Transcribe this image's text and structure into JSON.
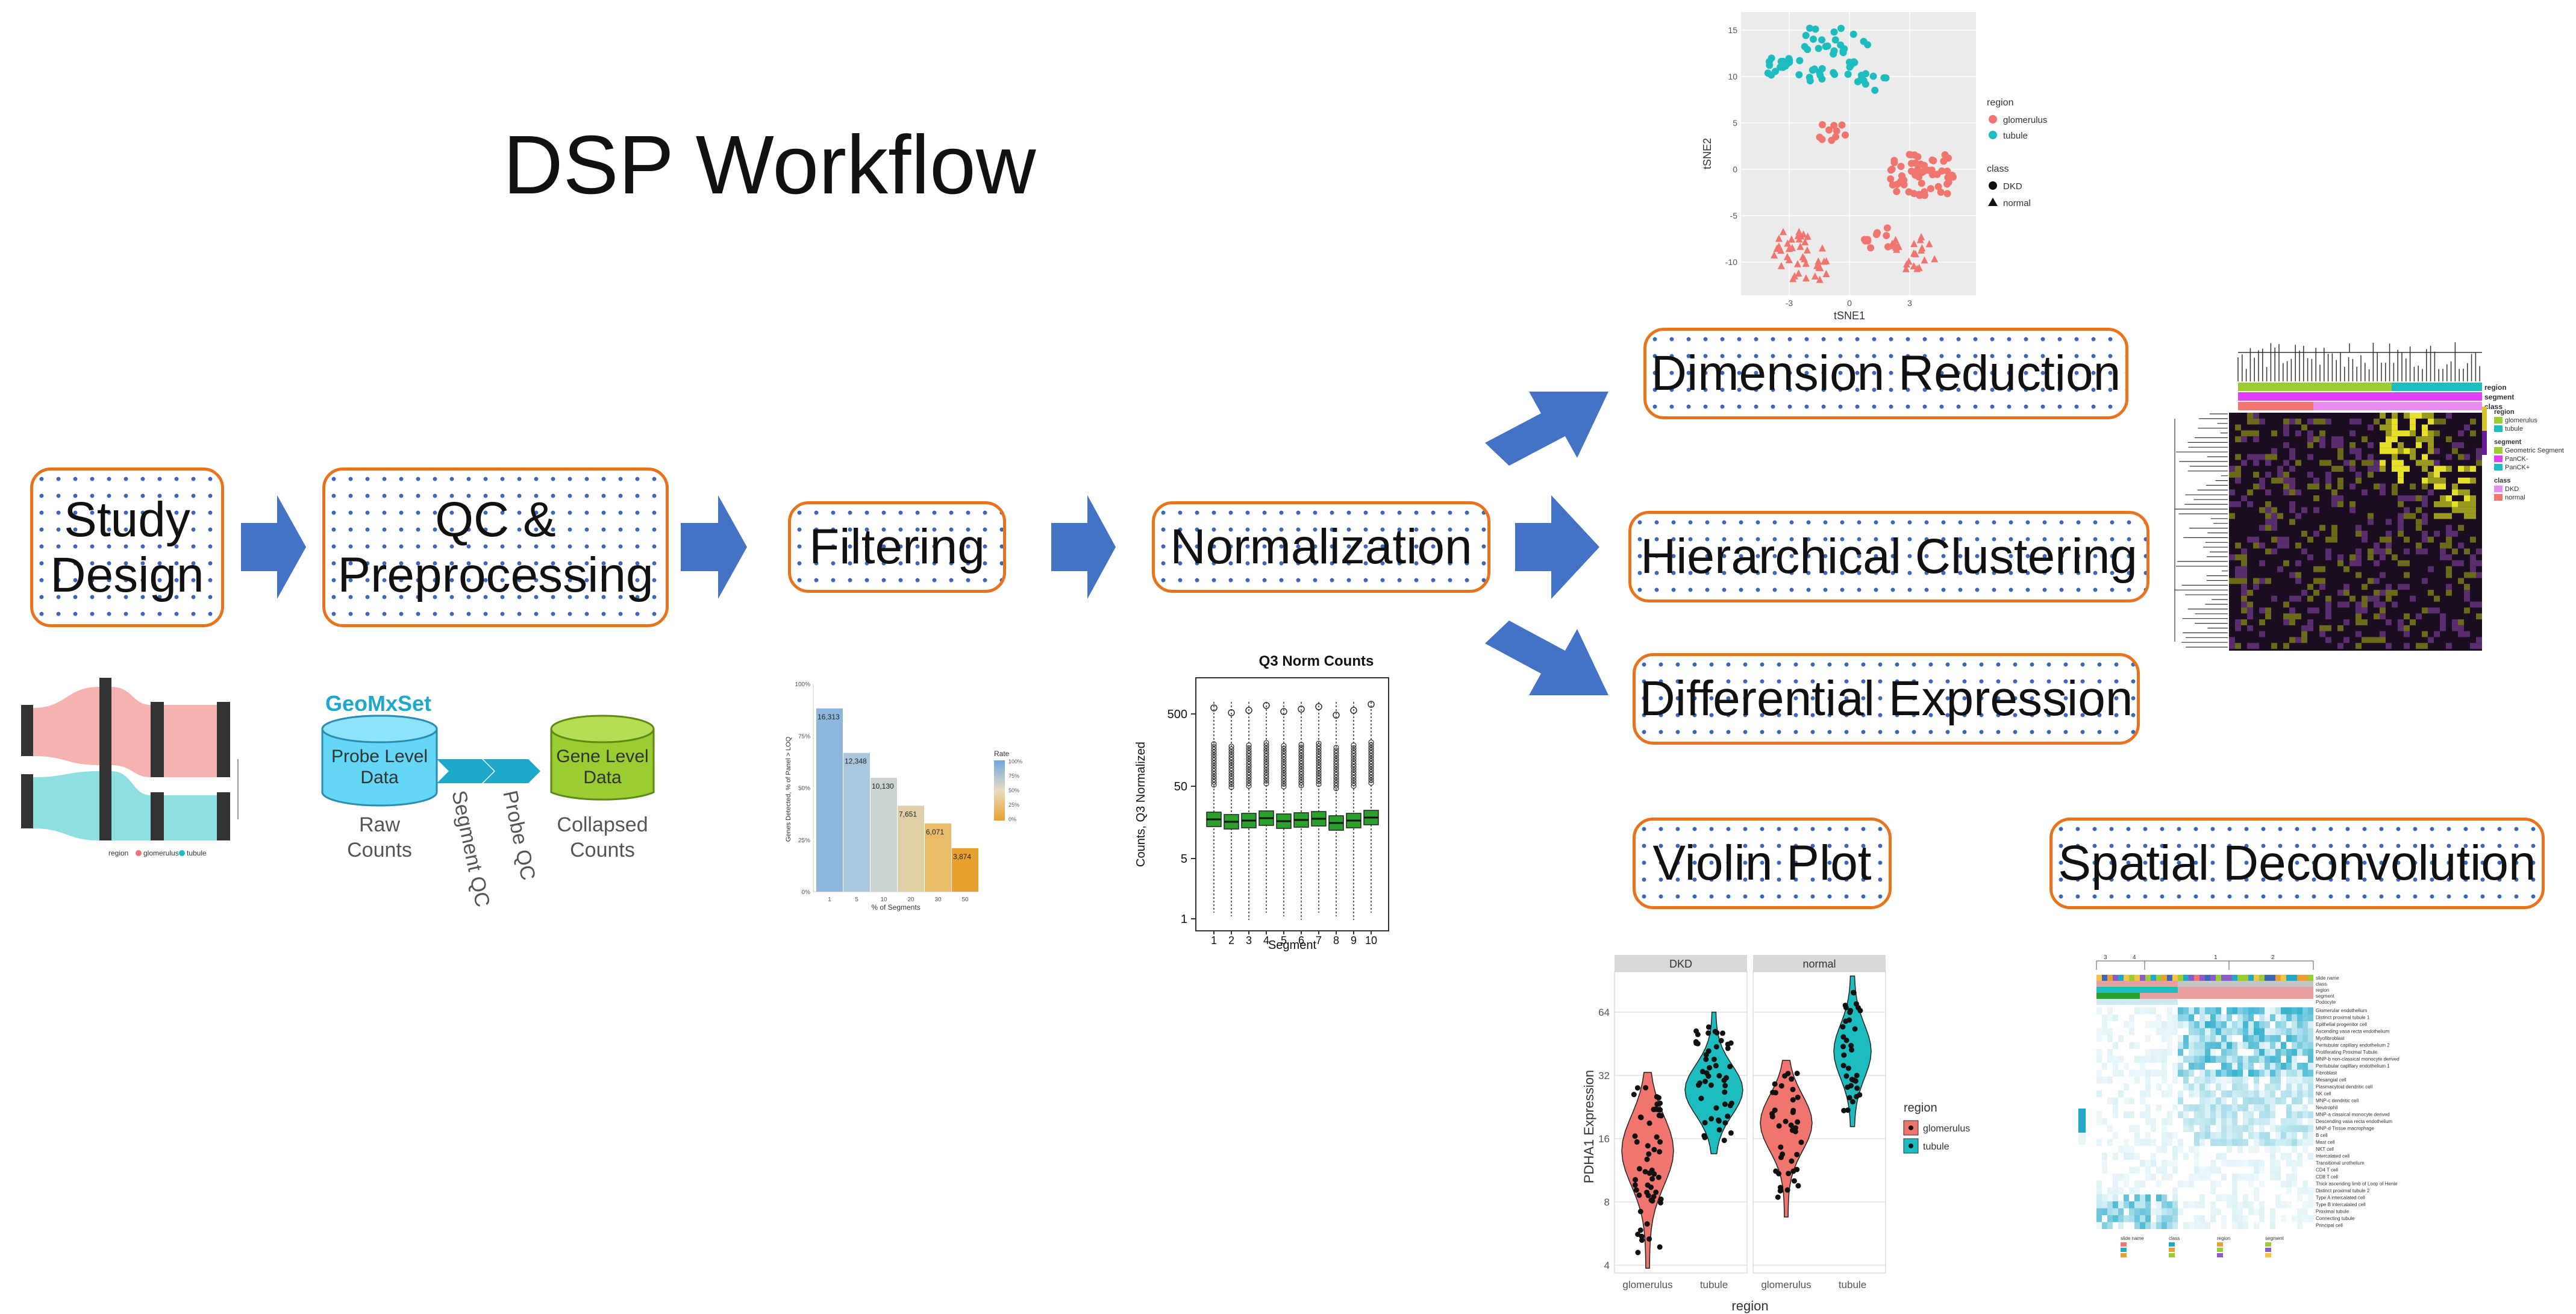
{
  "title": "DSP Workflow",
  "steps": {
    "study_design": "Study\nDesign",
    "qc": "QC &\nPreprocessing",
    "filtering": "Filtering",
    "normalization": "Normalization",
    "dimension_reduction": "Dimension Reduction",
    "hierarchical_clustering": "Hierarchical Clustering",
    "differential_expression": "Differential Expression",
    "violin_plot": "Violin Plot",
    "spatial_deconvolution": "Spatial Deconvolution"
  },
  "colors": {
    "arrow": "#4472c4",
    "box_border": "#e8731c",
    "dots": "#3b67b8",
    "glomerulus": "#f0756f",
    "tubule": "#1dbdbf",
    "box_green": "#2ca02c"
  },
  "geomx": {
    "title": "GeoMxSet",
    "probe_level": "Probe Level\nData",
    "gene_level": "Gene Level\nData",
    "raw_counts": "Raw\nCounts",
    "collapsed_counts": "Collapsed\nCounts",
    "segment_qc": "Segment QC",
    "probe_qc": "Probe QC"
  },
  "sankey_legend": {
    "label": "region",
    "items": [
      "glomerulus",
      "tubule"
    ]
  },
  "chart_data": [
    {
      "type": "bar",
      "title": "",
      "xlabel": "% of Segments",
      "ylabel": "Genes Detected, % of Panel > LOQ",
      "categories": [
        "1",
        "5",
        "10",
        "20",
        "30",
        "50"
      ],
      "values": [
        16313,
        12348,
        10130,
        7651,
        6071,
        3874
      ],
      "value_labels": [
        "16,313",
        "12,348",
        "10,130",
        "7,651",
        "6,071",
        "3,874"
      ],
      "yticks": [
        "100%",
        "75%",
        "50%",
        "25%",
        "0%"
      ],
      "legend_title": "Rate",
      "legend_ticks": [
        "100%",
        "75%",
        "50%",
        "25%",
        "0%"
      ]
    },
    {
      "type": "box",
      "title": "Q3 Norm Counts",
      "xlabel": "Segment",
      "ylabel": "Counts, Q3 Normalized",
      "categories": [
        "1",
        "2",
        "3",
        "4",
        "5",
        "6",
        "7",
        "8",
        "9",
        "10"
      ],
      "yticks": [
        "500",
        "50",
        "5",
        "1"
      ],
      "scale": "log"
    },
    {
      "type": "scatter",
      "xlabel": "tSNE1",
      "ylabel": "tSNE2",
      "xticks": [
        "-3",
        "0",
        "3"
      ],
      "yticks": [
        "15",
        "10",
        "5",
        "0",
        "-5",
        "-10"
      ],
      "legend": {
        "region_title": "region",
        "regions": [
          "glomerulus",
          "tubule"
        ],
        "class_title": "class",
        "classes": [
          "DKD",
          "normal"
        ]
      }
    },
    {
      "type": "violin",
      "ylabel": "PDHA1 Expression",
      "xlabel": "region",
      "panels": [
        "DKD",
        "normal"
      ],
      "categories": [
        "glomerulus",
        "tubule"
      ],
      "yticks": [
        "64",
        "32",
        "16",
        "8",
        "4"
      ],
      "scale": "log",
      "legend_title": "region",
      "legend_items": [
        "glomerulus",
        "tubule"
      ]
    }
  ],
  "heatmap1_legend": {
    "tracks": [
      "region",
      "segment",
      "class"
    ],
    "region_title": "region",
    "regions": [
      "glomerulus",
      "tubule"
    ],
    "segment_title": "segment",
    "segments": [
      "Geometric Segment",
      "PanCK-",
      "PanCK+"
    ],
    "class_title": "class",
    "classes": [
      "DKD",
      "normal"
    ]
  },
  "heatmap2": {
    "cluster_labels": [
      "3",
      "4",
      "1",
      "2"
    ],
    "tracks": [
      "slide name",
      "class",
      "region",
      "segment",
      "Podocyte"
    ],
    "cell_types": [
      "Glomerular endothelium",
      "Distinct proximal tubule 1",
      "Epithelial progenitor cell",
      "Ascending vasa recta endothelium",
      "Myofibroblast",
      "Peritubular capillary endothelium 2",
      "Proliferating Proximal Tubule",
      "MNP-b non-classical monocyte derived",
      "Peritubular capillary endothelium 1",
      "Fibroblast",
      "Mesangial cell",
      "Plasmacytoid dendritic cell",
      "NK cell",
      "MNP-c dendritic cell",
      "Neutrophil",
      "MNP-a classical monocyte derived",
      "Descending vasa recta endothelium",
      "MNP-d Tissue macrophage",
      "B cell",
      "Mast cell",
      "NKT cell",
      "Intercalated cell",
      "Transitional urothelium",
      "CD4 T cell",
      "CD8 T cell",
      "Thick ascending limb of Loop of Henle",
      "Distinct proximal tubule 2",
      "Type A intercalated cell",
      "Type B intercalated cell",
      "Proximal tubule",
      "Connecting tubule",
      "Principal cell"
    ],
    "bottom_legend": [
      "slide name",
      "class",
      "region",
      "segment"
    ]
  }
}
